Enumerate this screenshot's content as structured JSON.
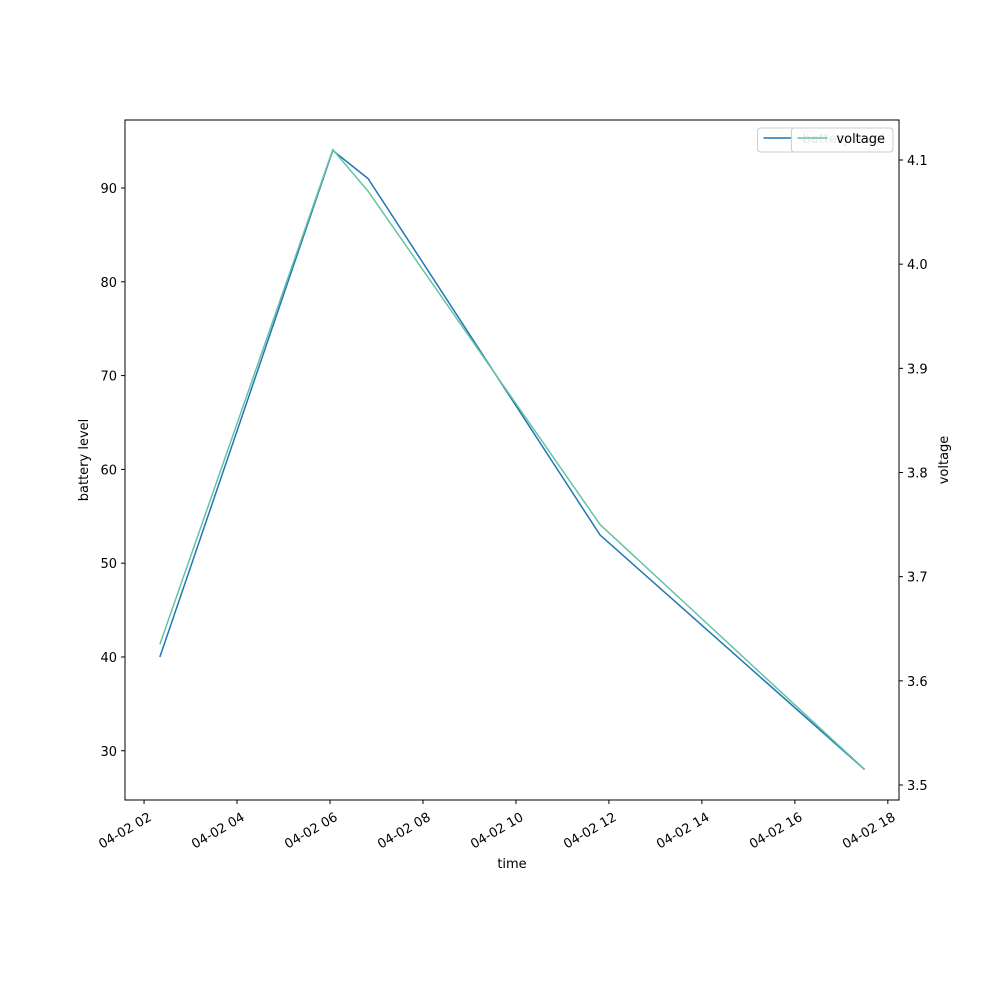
{
  "chart_data": {
    "type": "line",
    "x_label": "time",
    "y_label": "battery level",
    "y2_label": "voltage",
    "x": [
      2.34,
      6.06,
      6.82,
      11.81,
      17.5
    ],
    "series": [
      {
        "name": "battery level",
        "color": "#1f77b4",
        "values": [
          40,
          94,
          91,
          53,
          28
        ]
      },
      {
        "name": "voltage",
        "color": "#66c2a5",
        "axis": "y2",
        "values": [
          3.635,
          4.11,
          4.07,
          3.75,
          3.515
        ]
      }
    ],
    "xlim": [
      1.59,
      18.24
    ],
    "xticks": [
      {
        "value": 2,
        "label": "04-02 02"
      },
      {
        "value": 4,
        "label": "04-02 04"
      },
      {
        "value": 6,
        "label": "04-02 06"
      },
      {
        "value": 8,
        "label": "04-02 08"
      },
      {
        "value": 10,
        "label": "04-02 10"
      },
      {
        "value": 12,
        "label": "04-02 12"
      },
      {
        "value": 14,
        "label": "04-02 14"
      },
      {
        "value": 16,
        "label": "04-02 16"
      },
      {
        "value": 18,
        "label": "04-02 18"
      }
    ],
    "ylim": [
      24.75,
      97.25
    ],
    "yticks": [
      30,
      40,
      50,
      60,
      70,
      80,
      90
    ],
    "y2lim": [
      3.4856,
      4.1384
    ],
    "y2ticks": [
      {
        "value": 3.5,
        "label": "3.5"
      },
      {
        "value": 3.6,
        "label": "3.6"
      },
      {
        "value": 3.7,
        "label": "3.7"
      },
      {
        "value": 3.8,
        "label": "3.8"
      },
      {
        "value": 3.9,
        "label": "3.9"
      },
      {
        "value": 4.0,
        "label": "4.0"
      },
      {
        "value": 4.1,
        "label": "4.1"
      }
    ],
    "legend": "upper right",
    "grid": false
  }
}
